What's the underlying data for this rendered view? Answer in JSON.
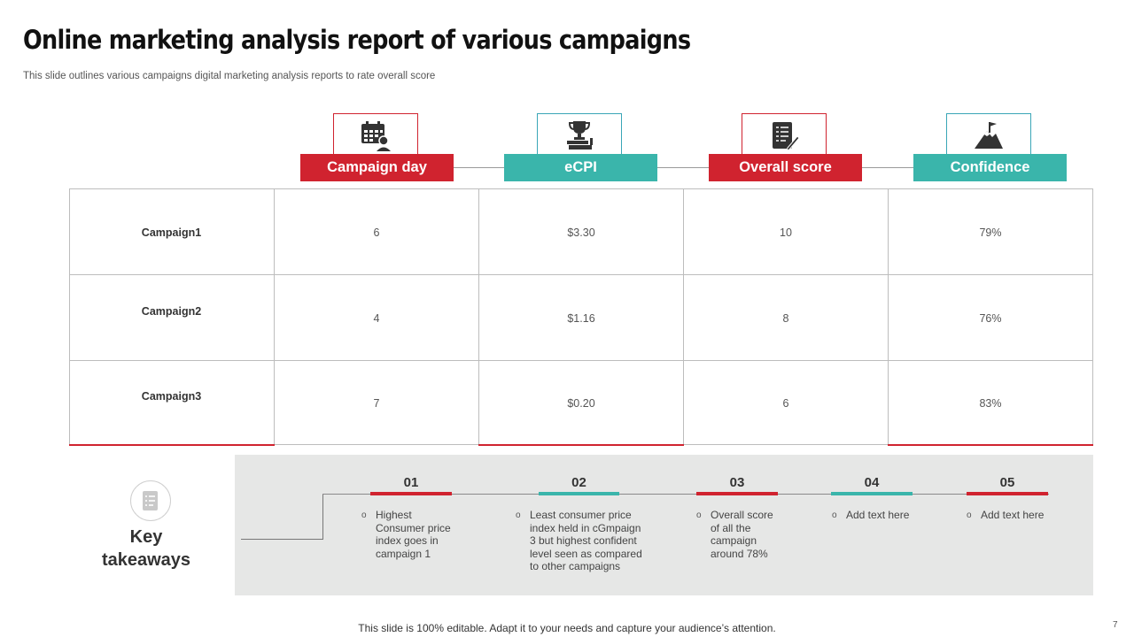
{
  "title": "Online marketing analysis report of various campaigns",
  "subtitle": "This slide outlines various campaigns digital marketing analysis reports to rate overall score",
  "columns": [
    {
      "label": "Campaign day",
      "icon": "calendar-person-icon",
      "color": "#d0232f"
    },
    {
      "label": "eCPI",
      "icon": "trophy-books-icon",
      "color": "#3ab5ab"
    },
    {
      "label": "Overall score",
      "icon": "clipboard-pen-icon",
      "color": "#d0232f"
    },
    {
      "label": "Confidence",
      "icon": "mountain-flag-icon",
      "color": "#3ab5ab"
    }
  ],
  "rows": [
    {
      "label": "Campaign1",
      "values": [
        "6",
        "$3.30",
        "10",
        "79%"
      ]
    },
    {
      "label": "Campaign2",
      "values": [
        "4",
        "$1.16",
        "8",
        "76%"
      ]
    },
    {
      "label": "Campaign3",
      "values": [
        "7",
        "$0.20",
        "6",
        "83%"
      ]
    }
  ],
  "key_takeaways": {
    "label_line1": "Key",
    "label_line2": "takeaways",
    "icon": "document-list-icon",
    "items": [
      {
        "num": "01",
        "lines": [
          "Highest",
          "Consumer price",
          "index goes in",
          "campaign 1"
        ]
      },
      {
        "num": "02",
        "lines": [
          "Least consumer price",
          "index held in cGmpaign",
          "3 but highest confident",
          "level seen as compared",
          "to other campaigns"
        ]
      },
      {
        "num": "03",
        "lines": [
          "Overall score",
          "of all the",
          "campaign",
          "around 78%"
        ]
      },
      {
        "num": "04",
        "lines": [
          "Add text here"
        ]
      },
      {
        "num": "05",
        "lines": [
          "Add text here"
        ]
      }
    ]
  },
  "footer": "This slide is 100% editable. Adapt it to your needs and capture your audience’s attention.",
  "page_number": "7",
  "colors": {
    "accent_red": "#d0232f",
    "accent_teal": "#3ab5ab",
    "panel_gray": "#e6e7e6"
  }
}
